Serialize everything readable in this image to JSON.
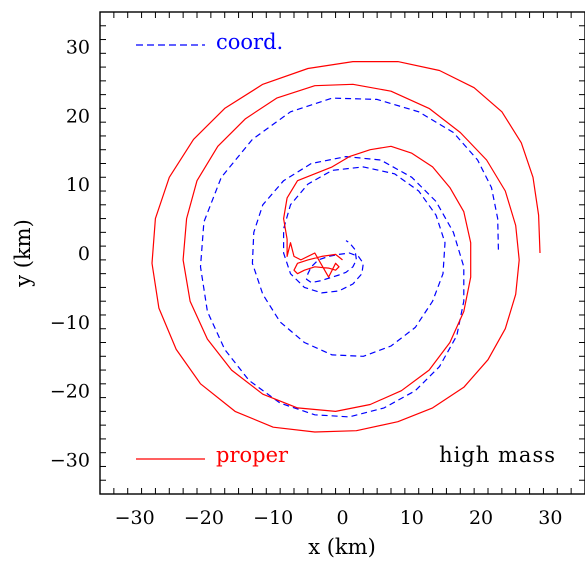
{
  "chart_data": {
    "type": "line",
    "title": "",
    "xlabel": "x (km)",
    "ylabel": "y (km)",
    "xlim": [
      -35,
      35
    ],
    "ylim": [
      -35,
      35
    ],
    "xticks": [
      -30,
      -20,
      -10,
      0,
      10,
      20,
      30
    ],
    "yticks": [
      -30,
      -20,
      -10,
      0,
      10,
      20,
      30
    ],
    "grid": false,
    "annotation": "high mass",
    "series": [
      {
        "name": "coord.",
        "color": "#0000ff",
        "style": "dashed",
        "legend_position": "top-left",
        "x": [
          22.5,
          22.4,
          21.5,
          19.5,
          16.0,
          11.0,
          5.0,
          -1.5,
          -7.5,
          -13.0,
          -17.5,
          -20.0,
          -20.5,
          -19.5,
          -17.0,
          -13.5,
          -9.0,
          -4.0,
          1.0,
          6.0,
          10.5,
          14.0,
          16.5,
          17.5,
          17.5,
          16.0,
          13.5,
          10.0,
          5.5,
          0.5,
          -4.5,
          -8.5,
          -11.5,
          -12.8,
          -13.0,
          -11.5,
          -9.0,
          -5.5,
          -1.5,
          3.0,
          7.0,
          10.5,
          13.0,
          14.5,
          14.8,
          13.5,
          11.0,
          7.5,
          3.0,
          -1.5,
          -5.0,
          -7.5,
          -8.5,
          -8.5,
          -7.5,
          -5.5,
          -3.0,
          -0.5,
          1.5,
          2.8,
          3.0,
          2.3,
          1.0,
          -0.5,
          -2.0,
          -3.5,
          -4.5,
          -5.0,
          -5.2,
          -4.5,
          -3.0,
          -1.5,
          -0.5,
          0.5,
          1.5,
          2.0,
          1.8,
          1.0,
          0.5
        ],
        "y": [
          0.5,
          5.0,
          9.5,
          13.5,
          17.5,
          20.5,
          22.3,
          22.5,
          20.5,
          16.5,
          11.0,
          4.5,
          -2.0,
          -8.5,
          -14.0,
          -18.5,
          -21.8,
          -23.5,
          -23.8,
          -22.5,
          -20.0,
          -16.5,
          -12.0,
          -7.0,
          -2.0,
          3.0,
          7.5,
          11.0,
          13.5,
          14.0,
          13.0,
          10.5,
          7.0,
          3.0,
          -1.5,
          -6.0,
          -10.0,
          -13.0,
          -14.8,
          -15.0,
          -13.5,
          -10.8,
          -7.0,
          -3.0,
          1.5,
          5.5,
          9.0,
          11.5,
          12.5,
          12.0,
          10.0,
          7.0,
          3.5,
          0.0,
          -3.0,
          -5.0,
          -5.8,
          -5.5,
          -4.5,
          -3.0,
          -1.5,
          -0.5,
          0.0,
          -0.2,
          -0.5,
          -1.0,
          -2.0,
          -3.0,
          -3.8,
          -4.3,
          -4.0,
          -3.5,
          -3.2,
          -2.8,
          -2.0,
          -1.0,
          0.5,
          1.5,
          1.8
        ]
      },
      {
        "name": "proper",
        "color": "#ff0000",
        "style": "solid",
        "legend_position": "bottom-left",
        "x": [
          28.5,
          28.3,
          27.5,
          25.8,
          23.0,
          19.0,
          14.0,
          8.0,
          1.5,
          -5.0,
          -11.5,
          -17.0,
          -21.5,
          -25.0,
          -27.0,
          -27.5,
          -26.5,
          -24.0,
          -20.5,
          -15.5,
          -10.0,
          -4.0,
          2.0,
          8.0,
          13.0,
          17.5,
          21.0,
          23.5,
          25.0,
          25.5,
          25.0,
          23.5,
          20.8,
          17.0,
          12.5,
          7.0,
          1.5,
          -4.0,
          -9.5,
          -14.0,
          -18.0,
          -21.0,
          -22.5,
          -23.0,
          -22.0,
          -19.5,
          -16.0,
          -11.5,
          -6.5,
          -1.0,
          4.0,
          8.5,
          12.5,
          15.5,
          17.5,
          18.5,
          18.5,
          17.5,
          15.5,
          13.0,
          10.0,
          7.0,
          4.0,
          1.0,
          -1.5,
          -4.0,
          -6.5,
          -8.0,
          -8.5,
          -8.0,
          -8.0,
          -7.5,
          -7.0,
          -6.0,
          -4.0,
          -2.0,
          -1.0,
          -0.5,
          -1.0,
          -2.0,
          -4.0,
          -5.5,
          -6.5,
          -7.0,
          -6.5,
          -5.0,
          -3.0,
          -1.0,
          0.0
        ],
        "y": [
          0.0,
          5.5,
          11.0,
          16.0,
          20.5,
          24.0,
          26.5,
          27.8,
          27.8,
          26.8,
          24.5,
          21.0,
          16.5,
          11.0,
          5.0,
          -1.5,
          -8.0,
          -14.0,
          -19.0,
          -23.0,
          -25.3,
          -26.0,
          -25.8,
          -24.5,
          -22.5,
          -19.5,
          -15.5,
          -11.0,
          -6.0,
          -1.0,
          4.0,
          9.0,
          13.5,
          17.5,
          21.0,
          23.5,
          24.5,
          24.3,
          22.5,
          19.5,
          15.5,
          10.5,
          5.0,
          -1.0,
          -7.0,
          -12.5,
          -17.0,
          -20.5,
          -22.5,
          -23.0,
          -22.0,
          -20.0,
          -17.0,
          -13.0,
          -8.5,
          -3.5,
          1.5,
          6.0,
          9.5,
          12.5,
          14.5,
          15.5,
          15.0,
          14.0,
          12.5,
          11.5,
          10.5,
          8.0,
          5.0,
          2.0,
          -0.5,
          1.5,
          -0.5,
          -1.0,
          0.0,
          -3.5,
          -1.5,
          -2.0,
          -2.5,
          -2.2,
          -2.0,
          -2.5,
          -3.0,
          -2.5,
          -1.5,
          -1.0,
          -0.5,
          -0.2,
          -1.0
        ]
      }
    ]
  }
}
